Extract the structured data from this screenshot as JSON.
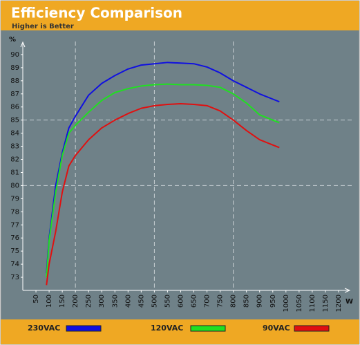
{
  "chart_data": {
    "type": "line",
    "title": "Efficiency Comparison",
    "subtitle": "Higher is Better",
    "ylabel": "%",
    "xlabel": "W",
    "x": [
      90,
      100,
      125,
      150,
      175,
      200,
      250,
      300,
      350,
      400,
      450,
      500,
      550,
      600,
      650,
      700,
      750,
      800,
      850,
      900,
      950,
      975
    ],
    "series": [
      {
        "name": "230VAC",
        "color": "#1010e0",
        "values": [
          73.3,
          76,
          80,
          82.5,
          84.4,
          85.3,
          86.9,
          87.8,
          88.4,
          88.9,
          89.2,
          89.3,
          89.4,
          89.35,
          89.3,
          89.05,
          88.6,
          88,
          87.5,
          87,
          86.6,
          86.4
        ]
      },
      {
        "name": "120VAC",
        "color": "#20e020",
        "values": [
          73,
          75.8,
          79.5,
          82.3,
          84,
          84.6,
          85.6,
          86.5,
          87.1,
          87.4,
          87.6,
          87.7,
          87.75,
          87.7,
          87.7,
          87.65,
          87.5,
          87,
          86.3,
          85.4,
          85,
          84.8
        ]
      },
      {
        "name": "90VAC",
        "color": "#e01010",
        "values": [
          72.4,
          74,
          76.5,
          79.5,
          81.5,
          82.3,
          83.5,
          84.4,
          85,
          85.5,
          85.9,
          86.1,
          86.2,
          86.25,
          86.2,
          86.1,
          85.7,
          85,
          84.2,
          83.5,
          83.1,
          82.9
        ]
      }
    ],
    "xlim": [
      0,
      1250
    ],
    "ylim": [
      72,
      91
    ],
    "xticks": [
      50,
      100,
      150,
      200,
      250,
      300,
      350,
      400,
      450,
      500,
      550,
      600,
      650,
      700,
      750,
      800,
      850,
      900,
      950,
      1000,
      1050,
      1100,
      1150,
      1200
    ],
    "yticks": [
      73,
      74,
      75,
      76,
      77,
      78,
      79,
      80,
      81,
      82,
      83,
      84,
      85,
      86,
      87,
      88,
      89,
      90
    ],
    "grid_x": [
      200,
      500,
      800
    ],
    "grid_y": [
      80,
      85
    ]
  }
}
